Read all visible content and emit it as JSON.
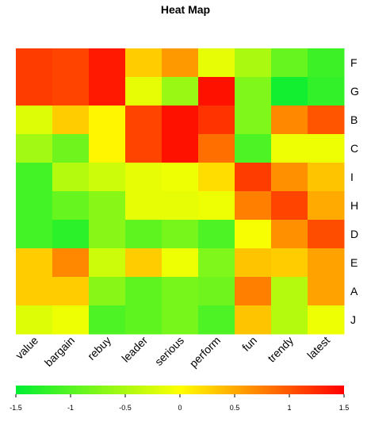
{
  "chart_data": {
    "type": "heatmap",
    "title": "Heat Map",
    "columns": [
      "value",
      "bargain",
      "rebuy",
      "leader",
      "serious",
      "perform",
      "fun",
      "trendy",
      "latest"
    ],
    "rows": [
      "F",
      "G",
      "B",
      "C",
      "I",
      "H",
      "D",
      "E",
      "A",
      "J"
    ],
    "values": [
      [
        1.15,
        1.1,
        1.35,
        0.3,
        0.6,
        -0.15,
        -0.5,
        -0.9,
        -1.15
      ],
      [
        1.15,
        1.1,
        1.35,
        -0.15,
        -0.6,
        1.4,
        -0.75,
        -1.4,
        -1.2
      ],
      [
        -0.2,
        0.3,
        0.05,
        1.1,
        1.4,
        1.2,
        -0.75,
        0.7,
        1.0
      ],
      [
        -0.55,
        -0.85,
        0.05,
        1.1,
        1.4,
        0.85,
        -1.05,
        -0.1,
        -0.1
      ],
      [
        -1.1,
        -0.45,
        -0.3,
        -0.15,
        -0.1,
        0.2,
        1.15,
        0.65,
        0.35
      ],
      [
        -1.1,
        -0.9,
        -0.7,
        -0.15,
        -0.15,
        -0.1,
        0.75,
        1.1,
        0.5
      ],
      [
        -1.1,
        -1.25,
        -0.7,
        -0.95,
        -0.8,
        -1.05,
        -0.05,
        0.65,
        1.05
      ],
      [
        0.3,
        0.7,
        -0.3,
        0.3,
        -0.1,
        -0.75,
        0.35,
        0.3,
        0.55
      ],
      [
        0.3,
        0.3,
        -0.7,
        -0.95,
        -0.8,
        -0.85,
        0.75,
        -0.45,
        0.55
      ],
      [
        -0.2,
        -0.1,
        -1.05,
        -0.95,
        -0.8,
        -1.05,
        0.35,
        -0.45,
        -0.1
      ]
    ],
    "colorbar": {
      "range": [
        -1.5,
        1.5
      ],
      "ticks": [
        "-1.5",
        "-1",
        "-0.5",
        "0",
        "0.5",
        "1",
        "1.5"
      ],
      "colors": [
        "#00ee33",
        "#ffff00",
        "#ff0000"
      ]
    }
  }
}
